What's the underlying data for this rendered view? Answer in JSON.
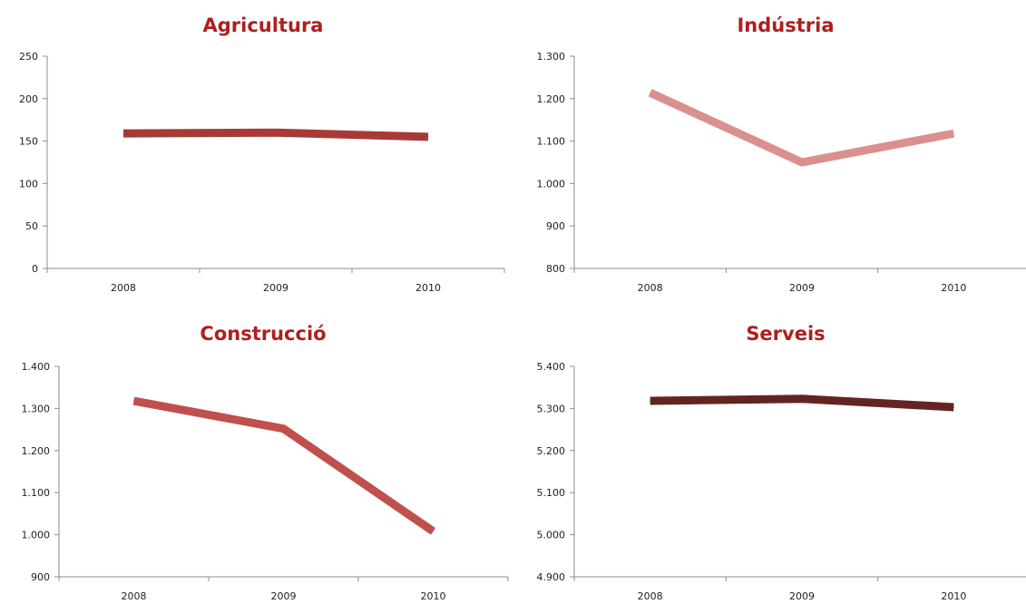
{
  "colors": {
    "title": "#b01e1e",
    "axis": "#8c8c8c",
    "text": "#222222"
  },
  "chart_data": [
    {
      "type": "line",
      "title": "Agricultura",
      "categories": [
        "2008",
        "2009",
        "2010"
      ],
      "series": [
        {
          "values": [
            159,
            160,
            155
          ],
          "color": "#a83a36"
        }
      ],
      "ylim": [
        0,
        250
      ],
      "yticks": [
        0,
        50,
        100,
        150,
        200,
        250
      ],
      "ytick_labels": [
        "0",
        "50",
        "100",
        "150",
        "200",
        "250"
      ],
      "grid": false,
      "legend": "none"
    },
    {
      "type": "line",
      "title": "Indústria",
      "categories": [
        "2008",
        "2009",
        "2010"
      ],
      "series": [
        {
          "values": [
            1214,
            1050,
            1118
          ],
          "color": "#d9908f"
        }
      ],
      "ylim": [
        800,
        1300
      ],
      "yticks": [
        800,
        900,
        1000,
        1100,
        1200,
        1300
      ],
      "ytick_labels": [
        "800",
        "900",
        "1.000",
        "1.100",
        "1.200",
        "1.300"
      ],
      "grid": false,
      "legend": "none"
    },
    {
      "type": "line",
      "title": "Construcció",
      "categories": [
        "2008",
        "2009",
        "2010"
      ],
      "series": [
        {
          "values": [
            1318,
            1252,
            1008
          ],
          "color": "#c0504d"
        }
      ],
      "ylim": [
        900,
        1400
      ],
      "yticks": [
        900,
        1000,
        1100,
        1200,
        1300,
        1400
      ],
      "ytick_labels": [
        "900",
        "1.000",
        "1.100",
        "1.200",
        "1.300",
        "1.400"
      ],
      "grid": false,
      "legend": "none"
    },
    {
      "type": "line",
      "title": "Serveis",
      "categories": [
        "2008",
        "2009",
        "2010"
      ],
      "series": [
        {
          "values": [
            5318,
            5323,
            5303
          ],
          "color": "#632523"
        }
      ],
      "ylim": [
        4900,
        5400
      ],
      "yticks": [
        4900,
        5000,
        5100,
        5200,
        5300,
        5400
      ],
      "ytick_labels": [
        "4.900",
        "5.000",
        "5.100",
        "5.200",
        "5.300",
        "5.400"
      ],
      "grid": false,
      "legend": "none"
    }
  ]
}
